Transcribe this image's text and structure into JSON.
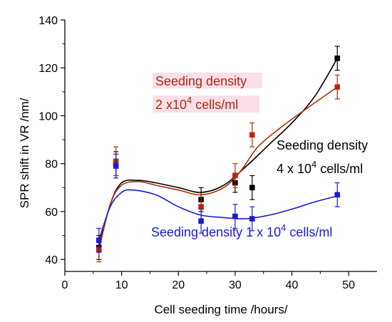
{
  "chart_data": {
    "type": "scatter",
    "xlabel": "Cell seeding time /hours/",
    "ylabel": "SPR shift in VR /nm/",
    "xlim": [
      0,
      55
    ],
    "ylim": [
      35,
      140
    ],
    "x_ticks": [
      0,
      10,
      20,
      30,
      40,
      50
    ],
    "y_ticks": [
      40,
      60,
      80,
      100,
      120,
      140
    ],
    "grid": false,
    "legend": "none",
    "series": [
      {
        "color": "#000000",
        "x": [
          6,
          9,
          24,
          30,
          33,
          48
        ],
        "y": [
          45,
          80,
          65,
          72,
          70,
          124
        ],
        "err": [
          5,
          5,
          5,
          4,
          5,
          5
        ],
        "curve": [
          [
            6,
            45
          ],
          [
            8,
            63
          ],
          [
            10,
            72
          ],
          [
            13,
            73
          ],
          [
            16,
            72
          ],
          [
            20,
            70
          ],
          [
            24,
            68
          ],
          [
            28,
            71
          ],
          [
            32,
            79
          ],
          [
            36,
            88
          ],
          [
            40,
            97
          ],
          [
            44,
            108
          ],
          [
            48,
            124
          ]
        ]
      },
      {
        "color": "#b22a0a",
        "x": [
          6,
          9,
          24,
          30,
          33,
          48
        ],
        "y": [
          44,
          81,
          62,
          75,
          92,
          112
        ],
        "err": [
          5,
          6,
          5,
          5,
          5,
          5
        ],
        "curve": [
          [
            6,
            44
          ],
          [
            8,
            63
          ],
          [
            10,
            71
          ],
          [
            13,
            72.5
          ],
          [
            16,
            71
          ],
          [
            20,
            69
          ],
          [
            24,
            67
          ],
          [
            28,
            70
          ],
          [
            31,
            77
          ],
          [
            34,
            87
          ],
          [
            38,
            95
          ],
          [
            42,
            102
          ],
          [
            45,
            107
          ],
          [
            48,
            112
          ]
        ]
      },
      {
        "color": "#1a1ad6",
        "x": [
          6,
          9,
          24,
          30,
          33,
          48
        ],
        "y": [
          48,
          79,
          56,
          58,
          57,
          67
        ],
        "err": [
          5,
          5,
          5,
          5,
          5,
          5
        ],
        "curve": [
          [
            6,
            48
          ],
          [
            8,
            62
          ],
          [
            10,
            68
          ],
          [
            12,
            69
          ],
          [
            16,
            67
          ],
          [
            20,
            62
          ],
          [
            24,
            58.5
          ],
          [
            28,
            57.5
          ],
          [
            32,
            57
          ],
          [
            36,
            58.5
          ],
          [
            40,
            61
          ],
          [
            44,
            64
          ],
          [
            48,
            66.5
          ]
        ]
      }
    ],
    "annotations": {
      "red_line1": "Seeding density",
      "red_line2_pre": "2 x10",
      "red_line2_sup": "4",
      "red_line2_post": " cells/ml",
      "black_line1": "Seeding density",
      "black_line2_pre": "4 x 10",
      "black_line2_sup": "4",
      "black_line2_post": " cells/ml",
      "blue_pre": "Seeding density 1 x 10",
      "blue_sup": "4",
      "blue_post": "  cells/ml"
    },
    "colors": {
      "black": "#000000",
      "red": "#b22a0a",
      "blue": "#1a1ad6",
      "highlight": "#f4c9dc"
    }
  }
}
